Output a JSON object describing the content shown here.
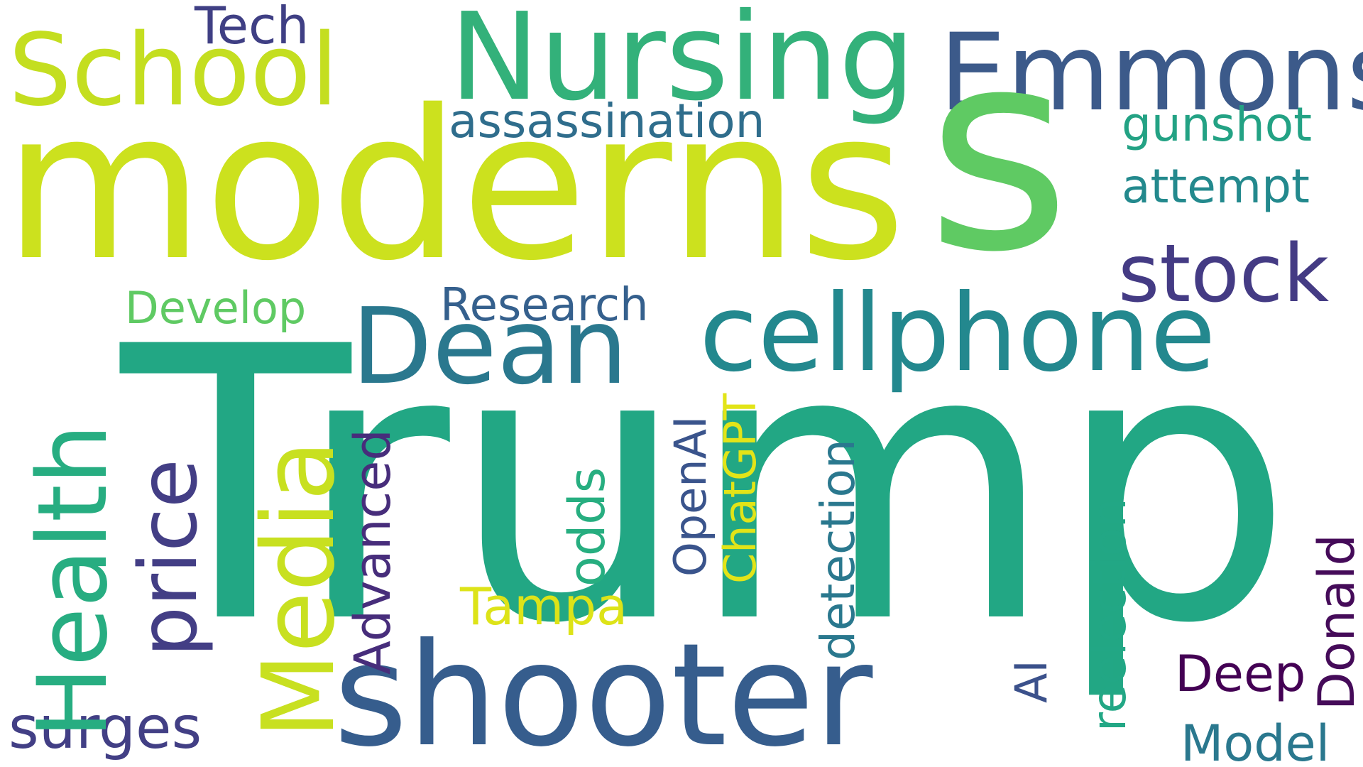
{
  "words": {
    "tech": {
      "text": "Tech",
      "color": "#3f3f84"
    },
    "school": {
      "text": "School",
      "color": "#c4de20"
    },
    "nursing": {
      "text": "Nursing",
      "color": "#33b17a"
    },
    "emmons": {
      "text": "Emmons",
      "color": "#3c5a8a"
    },
    "moderns": {
      "text": "moderns",
      "color": "#cce11e"
    },
    "s_big": {
      "text": "s",
      "color": "#5fca63"
    },
    "assassination": {
      "text": "assassination",
      "color": "#2f6d8c"
    },
    "gunshot": {
      "text": "gunshot",
      "color": "#23a284"
    },
    "attempt": {
      "text": "attempt",
      "color": "#23898d"
    },
    "stock": {
      "text": "stock",
      "color": "#443b84"
    },
    "develop": {
      "text": "Develop",
      "color": "#5fca63"
    },
    "research": {
      "text": "Research",
      "color": "#35608d"
    },
    "dean": {
      "text": "Dean",
      "color": "#2a788e"
    },
    "cellphone": {
      "text": "cellphone",
      "color": "#23888e"
    },
    "trump": {
      "text": "Trump",
      "color": "#22a784"
    },
    "health": {
      "text": "Health",
      "color": "#27ad81"
    },
    "price": {
      "text": "price",
      "color": "#433e85"
    },
    "media": {
      "text": "Media",
      "color": "#c8e020"
    },
    "advanced": {
      "text": "Advanced",
      "color": "#472d7b"
    },
    "odds": {
      "text": "odds",
      "color": "#27ae80"
    },
    "openai": {
      "text": "OpenAI",
      "color": "#3a548c"
    },
    "chatgpt": {
      "text": "ChatGPT",
      "color": "#e2e418"
    },
    "detection": {
      "text": "detection",
      "color": "#2a788e"
    },
    "reelection": {
      "text": "reelection",
      "color": "#22a785"
    },
    "donald": {
      "text": "Donald",
      "color": "#450b59"
    },
    "tampa": {
      "text": "Tampa",
      "color": "#dde318"
    },
    "shooter": {
      "text": "shooter",
      "color": "#365d8d"
    },
    "ai": {
      "text": "AI",
      "color": "#3b518b"
    },
    "deep": {
      "text": "Deep",
      "color": "#440154"
    },
    "surges": {
      "text": "surges",
      "color": "#423f85"
    },
    "model": {
      "text": "Model",
      "color": "#2a788e"
    }
  }
}
